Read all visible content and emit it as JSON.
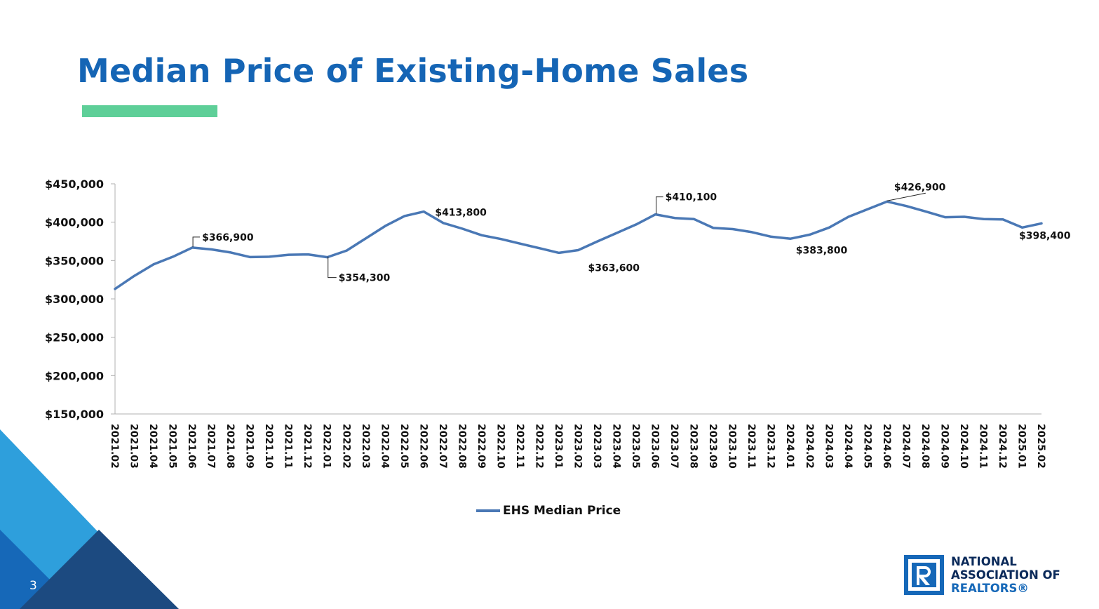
{
  "page": {
    "title": "Median Price of Existing-Home Sales",
    "page_number": "3",
    "colors": {
      "title": "#1565b5",
      "accent_bar": "#5ecf98",
      "series": "#4a78b5",
      "deco_light": "#2e9fdc",
      "deco_mid": "#1668b8",
      "deco_dark": "#1c4a80"
    }
  },
  "logo": {
    "icon": "realtor-r-logo-icon",
    "line1": "NATIONAL",
    "line2": "ASSOCIATION OF",
    "line3": "REALTORS®"
  },
  "chart_data": {
    "type": "line",
    "title": "",
    "xlabel": "",
    "ylabel": "",
    "ylim": [
      150000,
      450000
    ],
    "yticks": [
      450000,
      400000,
      350000,
      300000,
      250000,
      200000,
      150000
    ],
    "ytick_labels": [
      "$450,000",
      "$400,000",
      "$350,000",
      "$300,000",
      "$250,000",
      "$200,000",
      "$150,000"
    ],
    "categories": [
      "2021.02",
      "2021.03",
      "2021.04",
      "2021.05",
      "2021.06",
      "2021.07",
      "2021.08",
      "2021.09",
      "2021.10",
      "2021.11",
      "2021.12",
      "2022.01",
      "2022.02",
      "2022.03",
      "2022.04",
      "2022.05",
      "2022.06",
      "2022.07",
      "2022.08",
      "2022.09",
      "2022.10",
      "2022.11",
      "2022.12",
      "2023.01",
      "2023.02",
      "2023.03",
      "2023.04",
      "2023.05",
      "2023.06",
      "2023.07",
      "2023.08",
      "2023.09",
      "2023.10",
      "2023.11",
      "2023.12",
      "2024.01",
      "2024.02",
      "2024.03",
      "2024.04",
      "2024.05",
      "2024.06",
      "2024.07",
      "2024.08",
      "2024.09",
      "2024.10",
      "2024.11",
      "2024.12",
      "2025.01",
      "2025.02"
    ],
    "series": [
      {
        "name": "EHS Median Price",
        "color": "#4a78b5",
        "values": [
          313000,
          330000,
          345000,
          355000,
          366900,
          364500,
          360500,
          354500,
          355000,
          357500,
          358000,
          354300,
          363000,
          379000,
          395000,
          408000,
          413800,
          399000,
          391500,
          383000,
          378000,
          372000,
          366000,
          360000,
          363600,
          375000,
          386000,
          397000,
          410100,
          405500,
          404000,
          392500,
          391000,
          387000,
          381000,
          378500,
          383800,
          393000,
          407000,
          417000,
          426900,
          421000,
          414000,
          406500,
          407000,
          404000,
          403500,
          393000,
          398400
        ]
      }
    ],
    "annotations": [
      {
        "index": 4,
        "text": "$366,900"
      },
      {
        "index": 11,
        "text": "$354,300"
      },
      {
        "index": 16,
        "text": "$413,800"
      },
      {
        "index": 24,
        "text": "$363,600"
      },
      {
        "index": 28,
        "text": "$410,100"
      },
      {
        "index": 36,
        "text": "$383,800"
      },
      {
        "index": 40,
        "text": "$426,900"
      },
      {
        "index": 48,
        "text": "$398,400"
      }
    ],
    "legend": "bottom-center",
    "grid": false
  }
}
